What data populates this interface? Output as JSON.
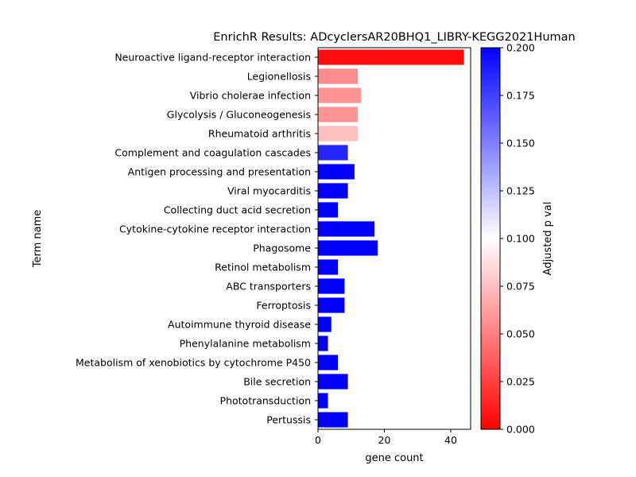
{
  "chart_data": {
    "type": "bar",
    "orientation": "horizontal",
    "title": "EnrichR Results: ADcyclersAR20BHQ1_LIBRY-KEGG2021Human",
    "xlabel": "gene count",
    "ylabel": "Term name",
    "xlim": [
      0,
      46
    ],
    "xticks": [
      "0",
      "20",
      "40"
    ],
    "categories": [
      "Neuroactive ligand-receptor interaction",
      "Legionellosis",
      "Vibrio cholerae infection",
      "Glycolysis / Gluconeogenesis",
      "Rheumatoid arthritis",
      "Complement and coagulation cascades",
      "Antigen processing and presentation",
      "Viral myocarditis",
      "Collecting duct acid secretion",
      "Cytokine-cytokine receptor interaction",
      "Phagosome",
      "Retinol metabolism",
      "ABC transporters",
      "Ferroptosis",
      "Autoimmune thyroid disease",
      "Phenylalanine metabolism",
      "Metabolism of xenobiotics by cytochrome P450",
      "Bile secretion",
      "Phototransduction",
      "Pertussis"
    ],
    "values": [
      44,
      12,
      13,
      12,
      12,
      9,
      11,
      9,
      6,
      17,
      18,
      6,
      8,
      8,
      4,
      3,
      6,
      9,
      3,
      9
    ],
    "adjusted_p_val": [
      0.005,
      0.055,
      0.058,
      0.058,
      0.075,
      0.185,
      0.2,
      0.2,
      0.2,
      0.2,
      0.2,
      0.2,
      0.2,
      0.2,
      0.2,
      0.2,
      0.2,
      0.2,
      0.2,
      0.2
    ],
    "colorbar": {
      "label": "Adjusted p val",
      "range": [
        0,
        0.2
      ],
      "ticks": [
        "0.000",
        "0.025",
        "0.050",
        "0.075",
        "0.100",
        "0.125",
        "0.150",
        "0.175",
        "0.200"
      ],
      "colormap": [
        "#ff0000",
        "#ffffff",
        "#0000ff"
      ]
    }
  }
}
